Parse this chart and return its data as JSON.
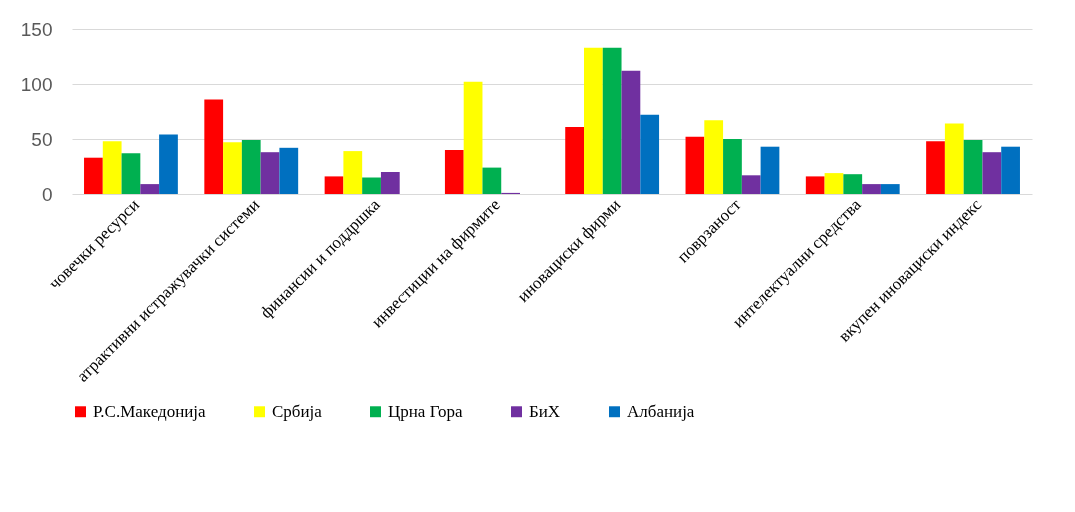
{
  "chart_data": {
    "type": "bar",
    "categories": [
      "човечки ресурси",
      "атрактивни истражувачки системи",
      "финансии и поддршка",
      "инвестиции на фирмите",
      "иновациски фирми",
      "поврзаност",
      "интелектуални средства",
      "вкупен иновациски индекс"
    ],
    "series": [
      {
        "name": "Р.С.Македонија",
        "color": "#ff0000",
        "values": [
          33,
          86,
          16,
          40,
          61,
          52,
          16,
          48
        ]
      },
      {
        "name": "Србија",
        "color": "#ffff00",
        "values": [
          48,
          47,
          39,
          102,
          133,
          67,
          19,
          64
        ]
      },
      {
        "name": "Црна Гора",
        "color": "#00b050",
        "values": [
          37,
          49,
          15,
          24,
          133,
          50,
          18,
          49
        ]
      },
      {
        "name": "БиХ",
        "color": "#7030a0",
        "values": [
          9,
          38,
          20,
          1,
          112,
          17,
          9,
          38
        ]
      },
      {
        "name": "Албанија",
        "color": "#0070c0",
        "values": [
          54,
          42,
          0,
          0,
          72,
          43,
          9,
          43
        ]
      }
    ],
    "ylim": [
      0,
      150
    ],
    "yticks": [
      0,
      50,
      100,
      150
    ],
    "grid": "y",
    "legend": "bottom"
  }
}
